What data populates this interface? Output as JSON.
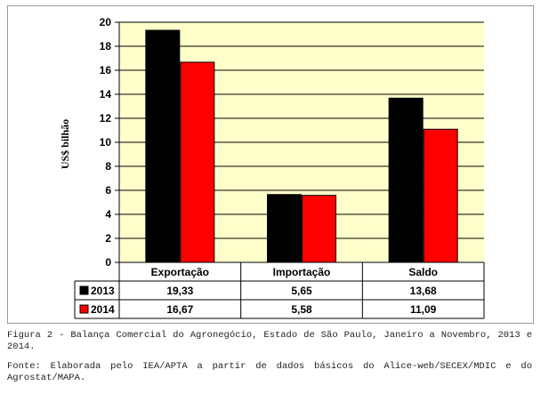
{
  "chart_data": {
    "type": "bar",
    "categories": [
      "Exportação",
      "Importação",
      "Saldo"
    ],
    "series": [
      {
        "name": "2013",
        "values": [
          19.33,
          5.65,
          13.68
        ],
        "labels": [
          "19,33",
          "5,65",
          "13,68"
        ],
        "color": "#000000"
      },
      {
        "name": "2014",
        "values": [
          16.67,
          5.58,
          11.09
        ],
        "labels": [
          "16,67",
          "5,58",
          "11,09"
        ],
        "color": "#ff0000"
      }
    ],
    "ylabel": "US$ bilhão",
    "ylim": [
      0,
      20
    ],
    "yticks": [
      0,
      2,
      4,
      6,
      8,
      10,
      12,
      14,
      16,
      18,
      20
    ],
    "plot_background": "#ffffcc",
    "grid": true,
    "data_table": true
  },
  "caption": {
    "figure": "Figura 2 - Balança Comercial do Agronegócio, Estado de São Paulo, Janeiro a Novembro, 2013 e 2014.",
    "source": "Fonte: Elaborada pelo IEA/APTA a partir de dados básicos do Alice-web/SECEX/MDIC e do Agrostat/MAPA."
  }
}
